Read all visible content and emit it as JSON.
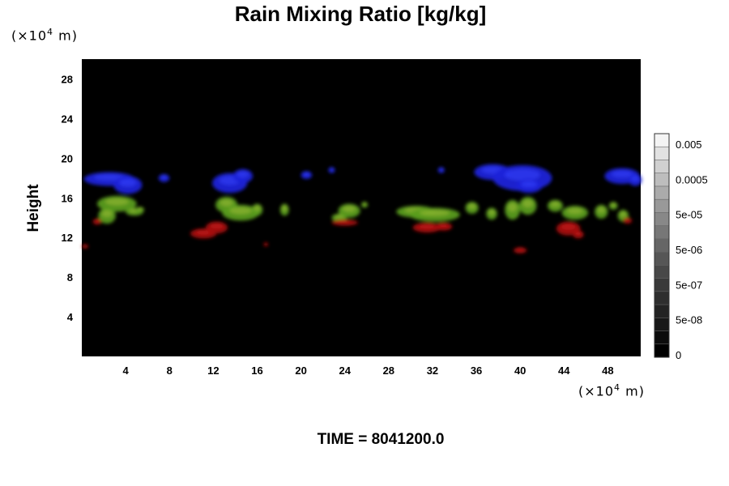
{
  "chart_data": {
    "type": "heatmap",
    "title": "Rain Mixing Ratio [kg/kg]",
    "ylabel": "Height",
    "y_unit": {
      "prefix": "(×10",
      "exp": "4",
      "suffix": " m)"
    },
    "x_unit": {
      "prefix": "(×10",
      "exp": "4",
      "suffix": " m)"
    },
    "x_ticks": [
      4,
      8,
      12,
      16,
      20,
      24,
      28,
      32,
      36,
      40,
      44,
      48
    ],
    "y_ticks": [
      4,
      8,
      12,
      16,
      20,
      24,
      28
    ],
    "xlim": [
      0,
      51
    ],
    "ylim": [
      0,
      30
    ],
    "background": "#000000",
    "colorbar": {
      "labels": [
        "0.005",
        "0.0005",
        "5e-05",
        "5e-06",
        "5e-07",
        "5e-08",
        "0"
      ],
      "colors": [
        "#f4f4f4",
        "#e2e2e2",
        "#d0d0d0",
        "#bdbdbd",
        "#ababab",
        "#999999",
        "#888888",
        "#777777",
        "#666666",
        "#565656",
        "#484848",
        "#3a3a3a",
        "#2e2e2e",
        "#232323",
        "#181818",
        "#0c0c0c",
        "#000000"
      ]
    },
    "layers": [
      {
        "name": "blue",
        "color": "#1a22d8",
        "highlight": "#3b45ff",
        "blobs": [
          {
            "x": 2.5,
            "y": 17.9,
            "rx": 2.3,
            "ry": 0.7
          },
          {
            "x": 4.2,
            "y": 17.3,
            "rx": 1.3,
            "ry": 0.9
          },
          {
            "x": 7.5,
            "y": 18.0,
            "rx": 0.5,
            "ry": 0.4
          },
          {
            "x": 13.5,
            "y": 17.5,
            "rx": 1.6,
            "ry": 1.0
          },
          {
            "x": 14.7,
            "y": 18.2,
            "rx": 0.9,
            "ry": 0.7
          },
          {
            "x": 20.5,
            "y": 18.3,
            "rx": 0.5,
            "ry": 0.4
          },
          {
            "x": 22.8,
            "y": 18.8,
            "rx": 0.3,
            "ry": 0.3
          },
          {
            "x": 32.8,
            "y": 18.8,
            "rx": 0.3,
            "ry": 0.3
          },
          {
            "x": 37.5,
            "y": 18.6,
            "rx": 1.7,
            "ry": 0.8
          },
          {
            "x": 40.2,
            "y": 18.0,
            "rx": 2.7,
            "ry": 1.3
          },
          {
            "x": 40.8,
            "y": 17.2,
            "rx": 1.2,
            "ry": 0.7
          },
          {
            "x": 49.3,
            "y": 18.2,
            "rx": 1.6,
            "ry": 0.8
          },
          {
            "x": 50.5,
            "y": 17.8,
            "rx": 0.6,
            "ry": 0.6
          }
        ]
      },
      {
        "name": "green",
        "color": "#5a9c1e",
        "highlight": "#9ebd33",
        "blobs": [
          {
            "x": 3.2,
            "y": 15.4,
            "rx": 1.8,
            "ry": 0.8
          },
          {
            "x": 2.3,
            "y": 14.2,
            "rx": 0.8,
            "ry": 0.8
          },
          {
            "x": 4.8,
            "y": 14.6,
            "rx": 0.8,
            "ry": 0.4
          },
          {
            "x": 5.3,
            "y": 14.8,
            "rx": 0.4,
            "ry": 0.3
          },
          {
            "x": 13.2,
            "y": 15.3,
            "rx": 1.0,
            "ry": 0.8
          },
          {
            "x": 14.5,
            "y": 14.5,
            "rx": 1.7,
            "ry": 0.8
          },
          {
            "x": 16.0,
            "y": 14.8,
            "rx": 0.5,
            "ry": 0.6
          },
          {
            "x": 18.5,
            "y": 14.8,
            "rx": 0.4,
            "ry": 0.6
          },
          {
            "x": 24.4,
            "y": 14.7,
            "rx": 1.0,
            "ry": 0.7
          },
          {
            "x": 23.5,
            "y": 14.0,
            "rx": 0.7,
            "ry": 0.4
          },
          {
            "x": 25.8,
            "y": 15.3,
            "rx": 0.3,
            "ry": 0.3
          },
          {
            "x": 30.5,
            "y": 14.6,
            "rx": 1.8,
            "ry": 0.6
          },
          {
            "x": 32.2,
            "y": 14.3,
            "rx": 2.3,
            "ry": 0.7
          },
          {
            "x": 35.6,
            "y": 15.0,
            "rx": 0.6,
            "ry": 0.6
          },
          {
            "x": 37.4,
            "y": 14.4,
            "rx": 0.5,
            "ry": 0.6
          },
          {
            "x": 39.3,
            "y": 14.8,
            "rx": 0.7,
            "ry": 1.0
          },
          {
            "x": 40.7,
            "y": 15.2,
            "rx": 0.8,
            "ry": 0.9
          },
          {
            "x": 43.2,
            "y": 15.2,
            "rx": 0.7,
            "ry": 0.6
          },
          {
            "x": 45.0,
            "y": 14.5,
            "rx": 1.2,
            "ry": 0.7
          },
          {
            "x": 47.4,
            "y": 14.6,
            "rx": 0.6,
            "ry": 0.7
          },
          {
            "x": 48.5,
            "y": 15.2,
            "rx": 0.4,
            "ry": 0.4
          },
          {
            "x": 49.4,
            "y": 14.2,
            "rx": 0.5,
            "ry": 0.6
          }
        ]
      },
      {
        "name": "red",
        "color": "#a40a0a",
        "highlight": "#cc2020",
        "blobs": [
          {
            "x": 1.4,
            "y": 13.6,
            "rx": 0.4,
            "ry": 0.3
          },
          {
            "x": 0.3,
            "y": 11.1,
            "rx": 0.3,
            "ry": 0.2
          },
          {
            "x": 11.1,
            "y": 12.4,
            "rx": 1.2,
            "ry": 0.5
          },
          {
            "x": 12.3,
            "y": 13.0,
            "rx": 1.0,
            "ry": 0.6
          },
          {
            "x": 16.8,
            "y": 11.3,
            "rx": 0.2,
            "ry": 0.2
          },
          {
            "x": 24.0,
            "y": 13.5,
            "rx": 1.2,
            "ry": 0.3
          },
          {
            "x": 31.5,
            "y": 13.0,
            "rx": 1.3,
            "ry": 0.5
          },
          {
            "x": 33.0,
            "y": 13.1,
            "rx": 0.8,
            "ry": 0.4
          },
          {
            "x": 40.0,
            "y": 10.7,
            "rx": 0.6,
            "ry": 0.3
          },
          {
            "x": 44.4,
            "y": 12.9,
            "rx": 1.1,
            "ry": 0.7
          },
          {
            "x": 45.3,
            "y": 12.3,
            "rx": 0.5,
            "ry": 0.4
          },
          {
            "x": 49.8,
            "y": 13.7,
            "rx": 0.4,
            "ry": 0.3
          }
        ]
      }
    ]
  },
  "footer": {
    "time_label": "TIME = 8041200.0"
  }
}
